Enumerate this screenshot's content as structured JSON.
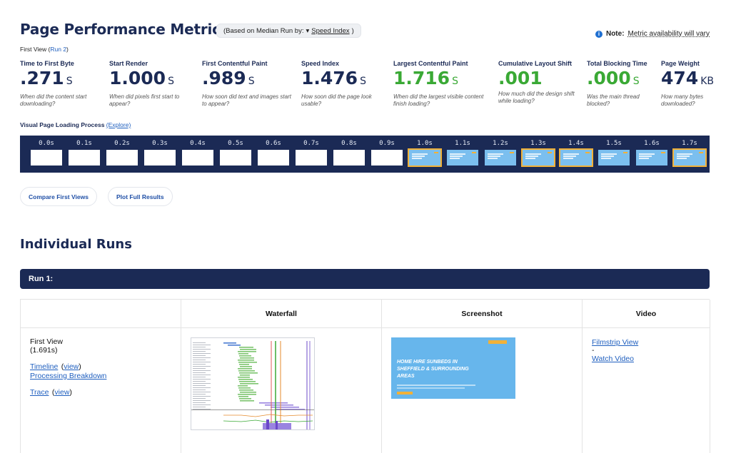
{
  "header": {
    "title": "Page Performance Metrics",
    "median_prefix": "(Based on Median Run by:",
    "median_arrow": "▾",
    "median_select": "Speed Index",
    "median_suffix": ")",
    "note_bold": "Note:",
    "note_text": "Metric availability will vary",
    "first_view_label": "First View (",
    "first_view_link": "Run 2",
    "first_view_close": ")"
  },
  "metrics": [
    {
      "label": "Time to First Byte",
      "value": ".271",
      "unit": "S",
      "desc": "When did the content start downloading?",
      "highlight": false
    },
    {
      "label": "Start Render",
      "value": "1.000",
      "unit": "S",
      "desc": "When did pixels first start to appear?",
      "highlight": false
    },
    {
      "label": "First Contentful Paint",
      "value": ".989",
      "unit": "S",
      "desc": "How soon did text and images start to appear?",
      "highlight": false
    },
    {
      "label": "Speed Index",
      "value": "1.476",
      "unit": "S",
      "desc": "How soon did the page look usable?",
      "highlight": false
    },
    {
      "label": "Largest Contentful Paint",
      "value": "1.716",
      "unit": "S",
      "desc": "When did the largest visible content finish loading?",
      "highlight": true
    },
    {
      "label": "Cumulative Layout Shift",
      "value": ".001",
      "unit": "",
      "desc": "How much did the design shift while loading?",
      "highlight": true
    },
    {
      "label": "Total Blocking Time",
      "value": ".000",
      "unit": "S",
      "desc": "Was the main thread blocked?",
      "highlight": true
    },
    {
      "label": "Page Weight",
      "value": "474",
      "unit": "KB",
      "desc": "How many bytes downloaded?",
      "highlight": false
    }
  ],
  "visual_loading": {
    "label": "Visual Page Loading Process",
    "explore_link": "(Explore)"
  },
  "filmstrip": [
    {
      "time": "0.0s",
      "state": "blank"
    },
    {
      "time": "0.1s",
      "state": "blank"
    },
    {
      "time": "0.2s",
      "state": "blank"
    },
    {
      "time": "0.3s",
      "state": "blank"
    },
    {
      "time": "0.4s",
      "state": "blank"
    },
    {
      "time": "0.5s",
      "state": "blank"
    },
    {
      "time": "0.6s",
      "state": "blank"
    },
    {
      "time": "0.7s",
      "state": "blank"
    },
    {
      "time": "0.8s",
      "state": "blank"
    },
    {
      "time": "0.9s",
      "state": "blank"
    },
    {
      "time": "1.0s",
      "state": "changed"
    },
    {
      "time": "1.1s",
      "state": "loaded"
    },
    {
      "time": "1.2s",
      "state": "loaded"
    },
    {
      "time": "1.3s",
      "state": "changed"
    },
    {
      "time": "1.4s",
      "state": "changed"
    },
    {
      "time": "1.5s",
      "state": "loaded"
    },
    {
      "time": "1.6s",
      "state": "loaded"
    },
    {
      "time": "1.7s",
      "state": "changed"
    }
  ],
  "buttons": {
    "compare": "Compare First Views",
    "plot": "Plot Full Results"
  },
  "runs": {
    "title": "Individual Runs",
    "run_label": "Run 1:",
    "columns": [
      "",
      "Waterfall",
      "Screenshot",
      "Video"
    ],
    "first_view": "First View",
    "first_view_time": "(1.691s)",
    "timeline": "Timeline",
    "view_link": "view",
    "processing": "Processing Breakdown",
    "trace": "Trace",
    "filmstrip_view": "Filmstrip View",
    "dash": "-",
    "watch_video": "Watch Video",
    "screenshot_headline": "HOME HIRE SUNBEDS IN SHEFFIELD & SURROUNDING AREAS"
  },
  "colors": {
    "navy": "#1b2a55",
    "green": "#3aa935",
    "link": "#1f5fbf",
    "highlight_frame": "#f2b138",
    "screenshot_blue": "#67b6ec"
  }
}
